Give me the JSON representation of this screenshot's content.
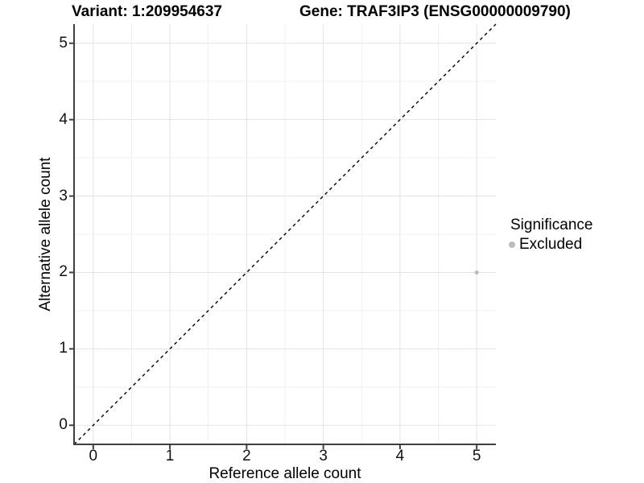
{
  "titles": {
    "variant": "Variant: 1:209954637",
    "gene": "Gene: TRAF3IP3 (ENSG00000009790)"
  },
  "legend": {
    "title": "Significance",
    "items": [
      {
        "label": "Excluded",
        "color": "#bcbcbc"
      }
    ]
  },
  "chart_data": {
    "type": "scatter",
    "title_left": "Variant: 1:209954637",
    "title_right": "Gene: TRAF3IP3 (ENSG00000009790)",
    "xlabel": "Reference allele count",
    "ylabel": "Alternative allele count",
    "xlim": [
      -0.25,
      5.25
    ],
    "ylim": [
      -0.25,
      5.25
    ],
    "xticks": [
      0,
      1,
      2,
      3,
      4,
      5
    ],
    "yticks": [
      0,
      1,
      2,
      3,
      4,
      5
    ],
    "xminor": [
      0.5,
      1.5,
      2.5,
      3.5,
      4.5
    ],
    "yminor": [
      0.5,
      1.5,
      2.5,
      3.5,
      4.5
    ],
    "grid": true,
    "legend_position": "right",
    "series": [
      {
        "name": "Excluded",
        "points": [
          {
            "x": 5,
            "y": 2
          }
        ],
        "color": "#bcbcbc",
        "point_radius": 2.6
      }
    ],
    "reference_line": {
      "type": "identity",
      "from": -0.25,
      "to": 5.25,
      "style": "dashed",
      "color": "#000000"
    },
    "colors": {
      "major_grid": "#e3e3e3",
      "minor_grid": "#f0f0f0",
      "axis_line": "#3f3f3f",
      "text": "#000000"
    }
  }
}
